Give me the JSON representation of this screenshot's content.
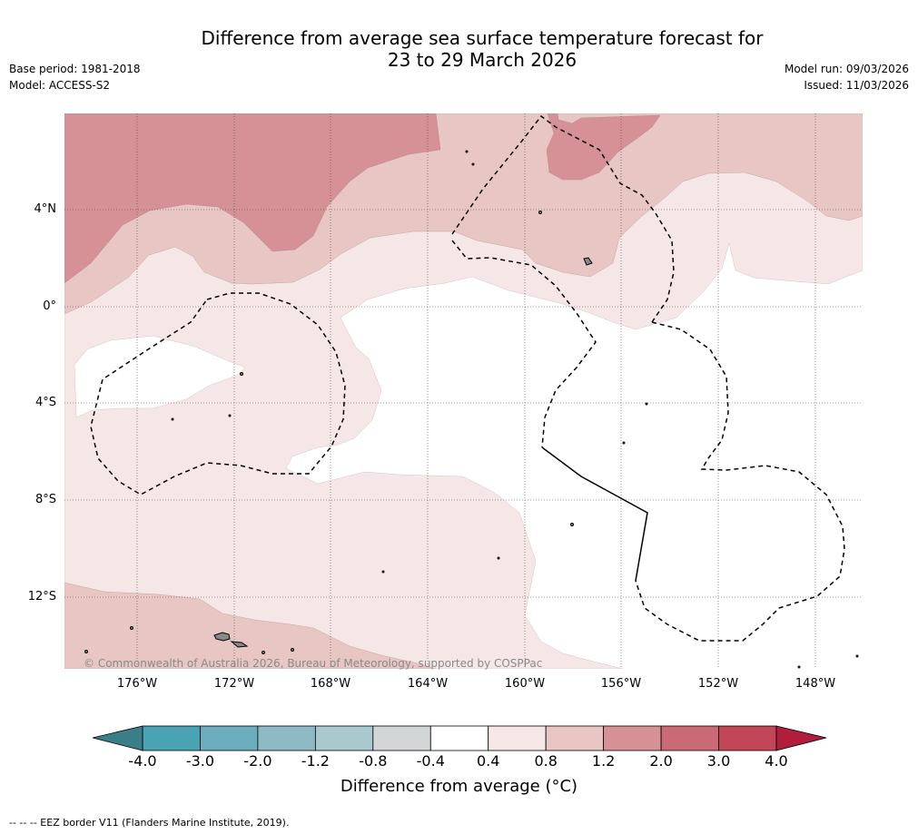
{
  "title": {
    "line1": "Difference from average sea surface temperature forecast for",
    "line2": "23 to 29 March 2026"
  },
  "meta": {
    "base_period": "Base period: 1981-2018",
    "model": "Model: ACCESS-S2",
    "model_run": "Model run: 09/03/2026",
    "issued": "Issued: 11/03/2026"
  },
  "map": {
    "lat_labels": [
      "4°N",
      "0°",
      "4°S",
      "8°S",
      "12°S"
    ],
    "lon_labels": [
      "176°W",
      "172°W",
      "168°W",
      "164°W",
      "160°W",
      "156°W",
      "152°W",
      "148°W"
    ],
    "copyright": "© Commonwealth of Australia 2026, Bureau of Meteorology, supported by COSPPac",
    "colors": {
      "anom_0_4_0_8": "#f4e7e6",
      "anom_0_8_1_2": "#e8c6c3",
      "anom_1_2_2_0": "#d69196",
      "land": "#888888"
    }
  },
  "colorbar": {
    "ticks": [
      "-4.0",
      "-3.0",
      "-2.0",
      "-1.2",
      "-0.8",
      "-0.4",
      "0.4",
      "0.8",
      "1.2",
      "2.0",
      "3.0",
      "4.0"
    ],
    "colors": [
      "#4aa3b4",
      "#6badbd",
      "#8ebac6",
      "#aac9cf",
      "#d3d6d7",
      "#ffffff",
      "#f4e7e6",
      "#e8c6c3",
      "#d69196",
      "#ca6a76",
      "#c04658"
    ],
    "under_color": "#3a7f87",
    "over_color": "#b01d3d",
    "label": "Difference from average (°C)"
  },
  "footnote": "--  --  -- EEZ border V11 (Flanders Marine Institute, 2019)."
}
